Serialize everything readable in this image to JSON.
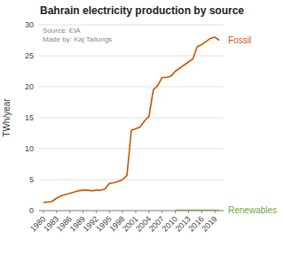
{
  "chart_data": {
    "type": "line",
    "title": "Bahrain electricity production by source",
    "y_label": "TWh/year",
    "annotations": [
      "Source: EIA",
      "Made by: Kaj Tallungs"
    ],
    "x": [
      1980,
      1981,
      1982,
      1983,
      1984,
      1985,
      1986,
      1987,
      1988,
      1989,
      1990,
      1991,
      1992,
      1993,
      1994,
      1995,
      1996,
      1997,
      1998,
      1999,
      2000,
      2001,
      2002,
      2003,
      2004,
      2005,
      2006,
      2007,
      2008,
      2009,
      2010,
      2011,
      2012,
      2013,
      2014,
      2015,
      2016,
      2017,
      2018,
      2019,
      2020
    ],
    "series": [
      {
        "name": "Fossil",
        "color": "#cc5500",
        "values": [
          1.3,
          1.4,
          1.5,
          2.0,
          2.4,
          2.6,
          2.8,
          3.0,
          3.2,
          3.3,
          3.3,
          3.2,
          3.3,
          3.3,
          3.5,
          4.4,
          4.5,
          4.7,
          5.0,
          5.7,
          13.0,
          13.2,
          13.5,
          14.5,
          15.2,
          19.5,
          20.2,
          21.5,
          21.5,
          21.7,
          22.5,
          23.0,
          23.5,
          24.0,
          24.5,
          26.5,
          26.8,
          27.3,
          27.8,
          28.0,
          27.5
        ]
      },
      {
        "name": "Renewables",
        "color": "#6aaa3a",
        "values": [
          null,
          null,
          null,
          null,
          null,
          null,
          null,
          null,
          null,
          null,
          null,
          null,
          null,
          null,
          null,
          null,
          null,
          null,
          null,
          null,
          null,
          null,
          null,
          null,
          null,
          null,
          null,
          null,
          null,
          null,
          0.05,
          0.05,
          0.05,
          0.05,
          0.05,
          0.05,
          0.05,
          0.05,
          0.05,
          0.05,
          0.05
        ]
      }
    ],
    "xlim": [
      1979,
      2021
    ],
    "xticks": [
      1980,
      1983,
      1986,
      1989,
      1992,
      1995,
      1998,
      2001,
      2004,
      2007,
      2010,
      2013,
      2016,
      2019
    ],
    "ylim": [
      0,
      30
    ],
    "yticks": [
      0,
      5,
      10,
      15,
      20,
      25,
      30
    ],
    "grid": true
  }
}
